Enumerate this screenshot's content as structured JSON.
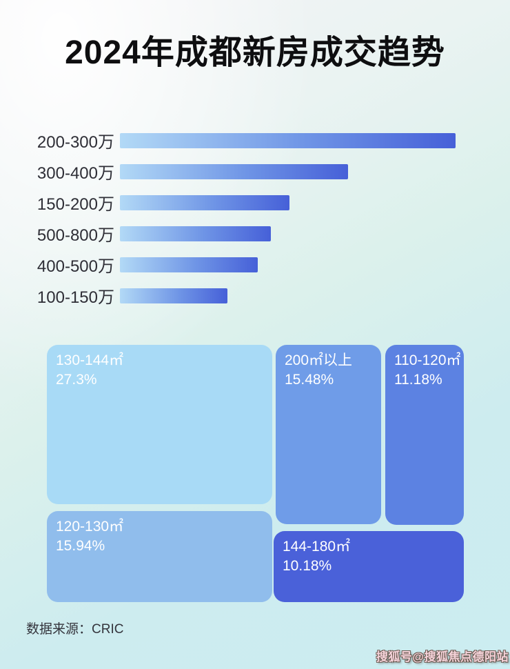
{
  "page": {
    "title": "2024年成都新房成交趋势",
    "source_label": "数据来源：CRIC",
    "watermark": "搜狐号@搜狐焦点德阳站"
  },
  "colors": {
    "title_text": "#0e0e10",
    "bar_label_text": "#2e2e36",
    "bar_gradient_start": "#b2d9f6",
    "bar_gradient_end": "#4660d8",
    "treemap_text": "#ffffff",
    "background_top_left": "#f5f3f6",
    "background_bottom": "#ccedf1"
  },
  "chart_data": [
    {
      "type": "bar",
      "orientation": "horizontal",
      "categories": [
        "200-300万",
        "300-400万",
        "150-200万",
        "500-800万",
        "400-500万",
        "100-150万"
      ],
      "values": [
        100,
        68,
        50.5,
        45,
        41,
        32
      ],
      "value_unit": "relative length, % of longest bar (no numeric axis shown in image)",
      "value_labels_shown": false,
      "grid": false,
      "legend": false
    },
    {
      "type": "treemap",
      "title": "",
      "items": [
        {
          "label": "130-144㎡",
          "value_pct": 27.3,
          "display": "27.3%",
          "color": "#a8daf6"
        },
        {
          "label": "200㎡以上",
          "value_pct": 15.48,
          "display": "15.48%",
          "color": "#6f9ce8"
        },
        {
          "label": "110-120㎡",
          "value_pct": 11.18,
          "display": "11.18%",
          "color": "#5c82e2"
        },
        {
          "label": "120-130㎡",
          "value_pct": 15.94,
          "display": "15.94%",
          "color": "#90bdec"
        },
        {
          "label": "144-180㎡",
          "value_pct": 10.18,
          "display": "10.18%",
          "color": "#4a61d9"
        }
      ]
    }
  ]
}
